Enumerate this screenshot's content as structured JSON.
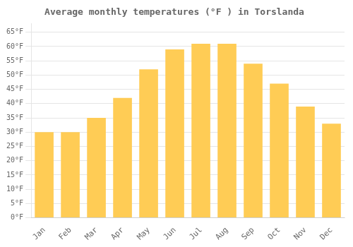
{
  "chart_data": {
    "type": "bar",
    "title": "Average monthly temperatures (°F ) in Torslanda",
    "categories": [
      "Jan",
      "Feb",
      "Mar",
      "Apr",
      "May",
      "Jun",
      "Jul",
      "Aug",
      "Sep",
      "Oct",
      "Nov",
      "Dec"
    ],
    "values": [
      30,
      30,
      35,
      42,
      52,
      59,
      61,
      61,
      54,
      47,
      39,
      33
    ],
    "color": "#FFCC55",
    "ylim": [
      0,
      68
    ],
    "yticks": [
      {
        "value": 0,
        "label": "0°F"
      },
      {
        "value": 5,
        "label": "5°F"
      },
      {
        "value": 10,
        "label": "10°F"
      },
      {
        "value": 15,
        "label": "15°F"
      },
      {
        "value": 20,
        "label": "20°F"
      },
      {
        "value": 25,
        "label": "25°F"
      },
      {
        "value": 30,
        "label": "30°F"
      },
      {
        "value": 35,
        "label": "35°F"
      },
      {
        "value": 40,
        "label": "40°F"
      },
      {
        "value": 45,
        "label": "45°F"
      },
      {
        "value": 50,
        "label": "50°F"
      },
      {
        "value": 55,
        "label": "55°F"
      },
      {
        "value": 60,
        "label": "60°F"
      },
      {
        "value": 65,
        "label": "65°F"
      }
    ],
    "grid": true
  }
}
